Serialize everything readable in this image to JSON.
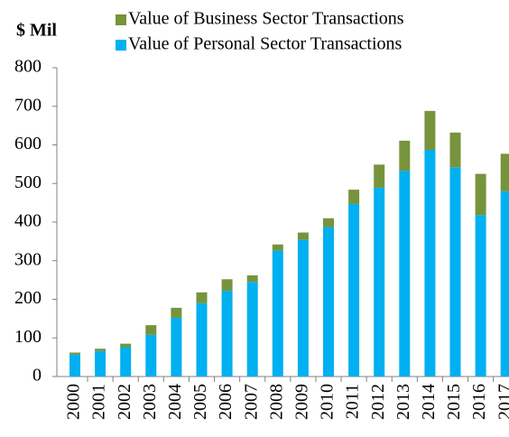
{
  "chart_data": {
    "type": "stacked_bar",
    "y_label": "$ Mil",
    "categories": [
      "2000",
      "2001",
      "2002",
      "2003",
      "2004",
      "2005",
      "2006",
      "2007",
      "2008",
      "2009",
      "2010",
      "2011",
      "2012",
      "2013",
      "2014",
      "2015",
      "2016",
      "2017"
    ],
    "series": [
      {
        "name": "Value of Personal Sector Transactions",
        "color": "#00b0f0",
        "values": [
          57,
          66,
          76,
          108,
          152,
          190,
          222,
          245,
          326,
          354,
          387,
          447,
          489,
          533,
          587,
          542,
          418,
          480
        ]
      },
      {
        "name": "Value of Business Sector Transactions",
        "color": "#77933c",
        "values": [
          5,
          6,
          9,
          25,
          26,
          28,
          30,
          17,
          16,
          19,
          23,
          37,
          60,
          78,
          101,
          90,
          107,
          97
        ]
      }
    ],
    "ylim": [
      0,
      800
    ],
    "yticks": [
      0,
      100,
      200,
      300,
      400,
      500,
      600,
      700,
      800
    ]
  }
}
